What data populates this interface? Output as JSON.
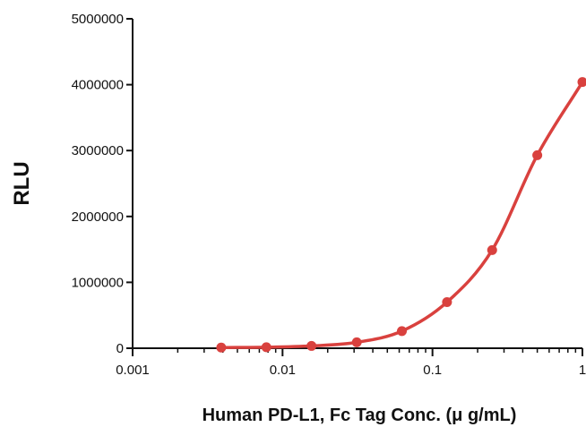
{
  "chart_data": {
    "type": "scatter",
    "title": "",
    "xlabel": "Human PD-L1, Fc Tag Conc. (μ g/mL)",
    "ylabel": "RLU",
    "x_scale": "log",
    "xlim": [
      0.001,
      1
    ],
    "ylim": [
      0,
      5000000
    ],
    "x_ticks": [
      0.001,
      0.01,
      0.1,
      1
    ],
    "x_tick_labels": [
      "0.001",
      "0.01",
      "0.1",
      "1"
    ],
    "y_ticks": [
      0,
      1000000,
      2000000,
      3000000,
      4000000,
      5000000
    ],
    "y_tick_labels": [
      "0",
      "1000000",
      "2000000",
      "3000000",
      "4000000",
      "5000000"
    ],
    "grid": false,
    "fit_curve": "sigmoidal",
    "color": "#d9413e",
    "series": [
      {
        "x": [
          0.0039,
          0.0078,
          0.0156,
          0.03125,
          0.0625,
          0.125,
          0.25,
          0.5,
          1
        ],
        "y": [
          10000,
          15000,
          35000,
          90000,
          260000,
          700000,
          1490000,
          2930000,
          4040000
        ]
      }
    ]
  }
}
